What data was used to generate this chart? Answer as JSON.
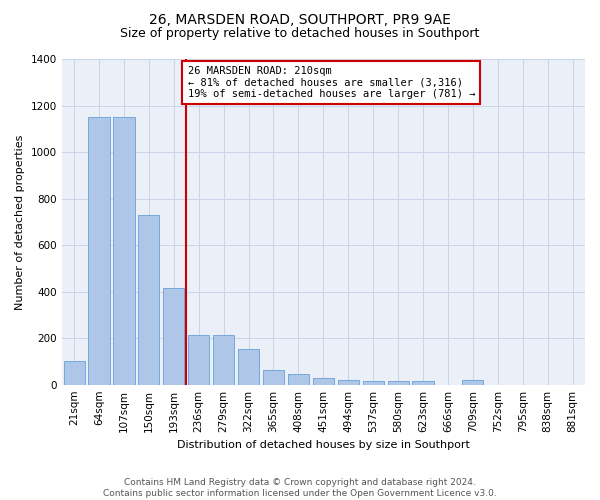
{
  "title": "26, MARSDEN ROAD, SOUTHPORT, PR9 9AE",
  "subtitle": "Size of property relative to detached houses in Southport",
  "xlabel": "Distribution of detached houses by size in Southport",
  "ylabel": "Number of detached properties",
  "footer_line1": "Contains HM Land Registry data © Crown copyright and database right 2024.",
  "footer_line2": "Contains public sector information licensed under the Open Government Licence v3.0.",
  "annotation_line1": "26 MARSDEN ROAD: 210sqm",
  "annotation_line2": "← 81% of detached houses are smaller (3,316)",
  "annotation_line3": "19% of semi-detached houses are larger (781) →",
  "bin_labels": [
    "21sqm",
    "64sqm",
    "107sqm",
    "150sqm",
    "193sqm",
    "236sqm",
    "279sqm",
    "322sqm",
    "365sqm",
    "408sqm",
    "451sqm",
    "494sqm",
    "537sqm",
    "580sqm",
    "623sqm",
    "666sqm",
    "709sqm",
    "752sqm",
    "795sqm",
    "838sqm",
    "881sqm"
  ],
  "bar_heights": [
    100,
    1150,
    1150,
    730,
    415,
    215,
    215,
    155,
    65,
    45,
    30,
    20,
    15,
    15,
    15,
    0,
    20,
    0,
    0,
    0,
    0
  ],
  "bar_color": "#aec6e8",
  "bar_edge_color": "#6a9fd8",
  "red_line_bin": 4.5,
  "red_line_color": "#cc0000",
  "annotation_box_color": "#cc0000",
  "ylim": [
    0,
    1400
  ],
  "yticks": [
    0,
    200,
    400,
    600,
    800,
    1000,
    1200,
    1400
  ],
  "grid_color": "#c8d4e8",
  "background_color": "#eaeff8",
  "title_fontsize": 10,
  "subtitle_fontsize": 9,
  "ylabel_fontsize": 8,
  "xlabel_fontsize": 8,
  "tick_fontsize": 7.5,
  "annotation_fontsize": 7.5,
  "footer_fontsize": 6.5
}
